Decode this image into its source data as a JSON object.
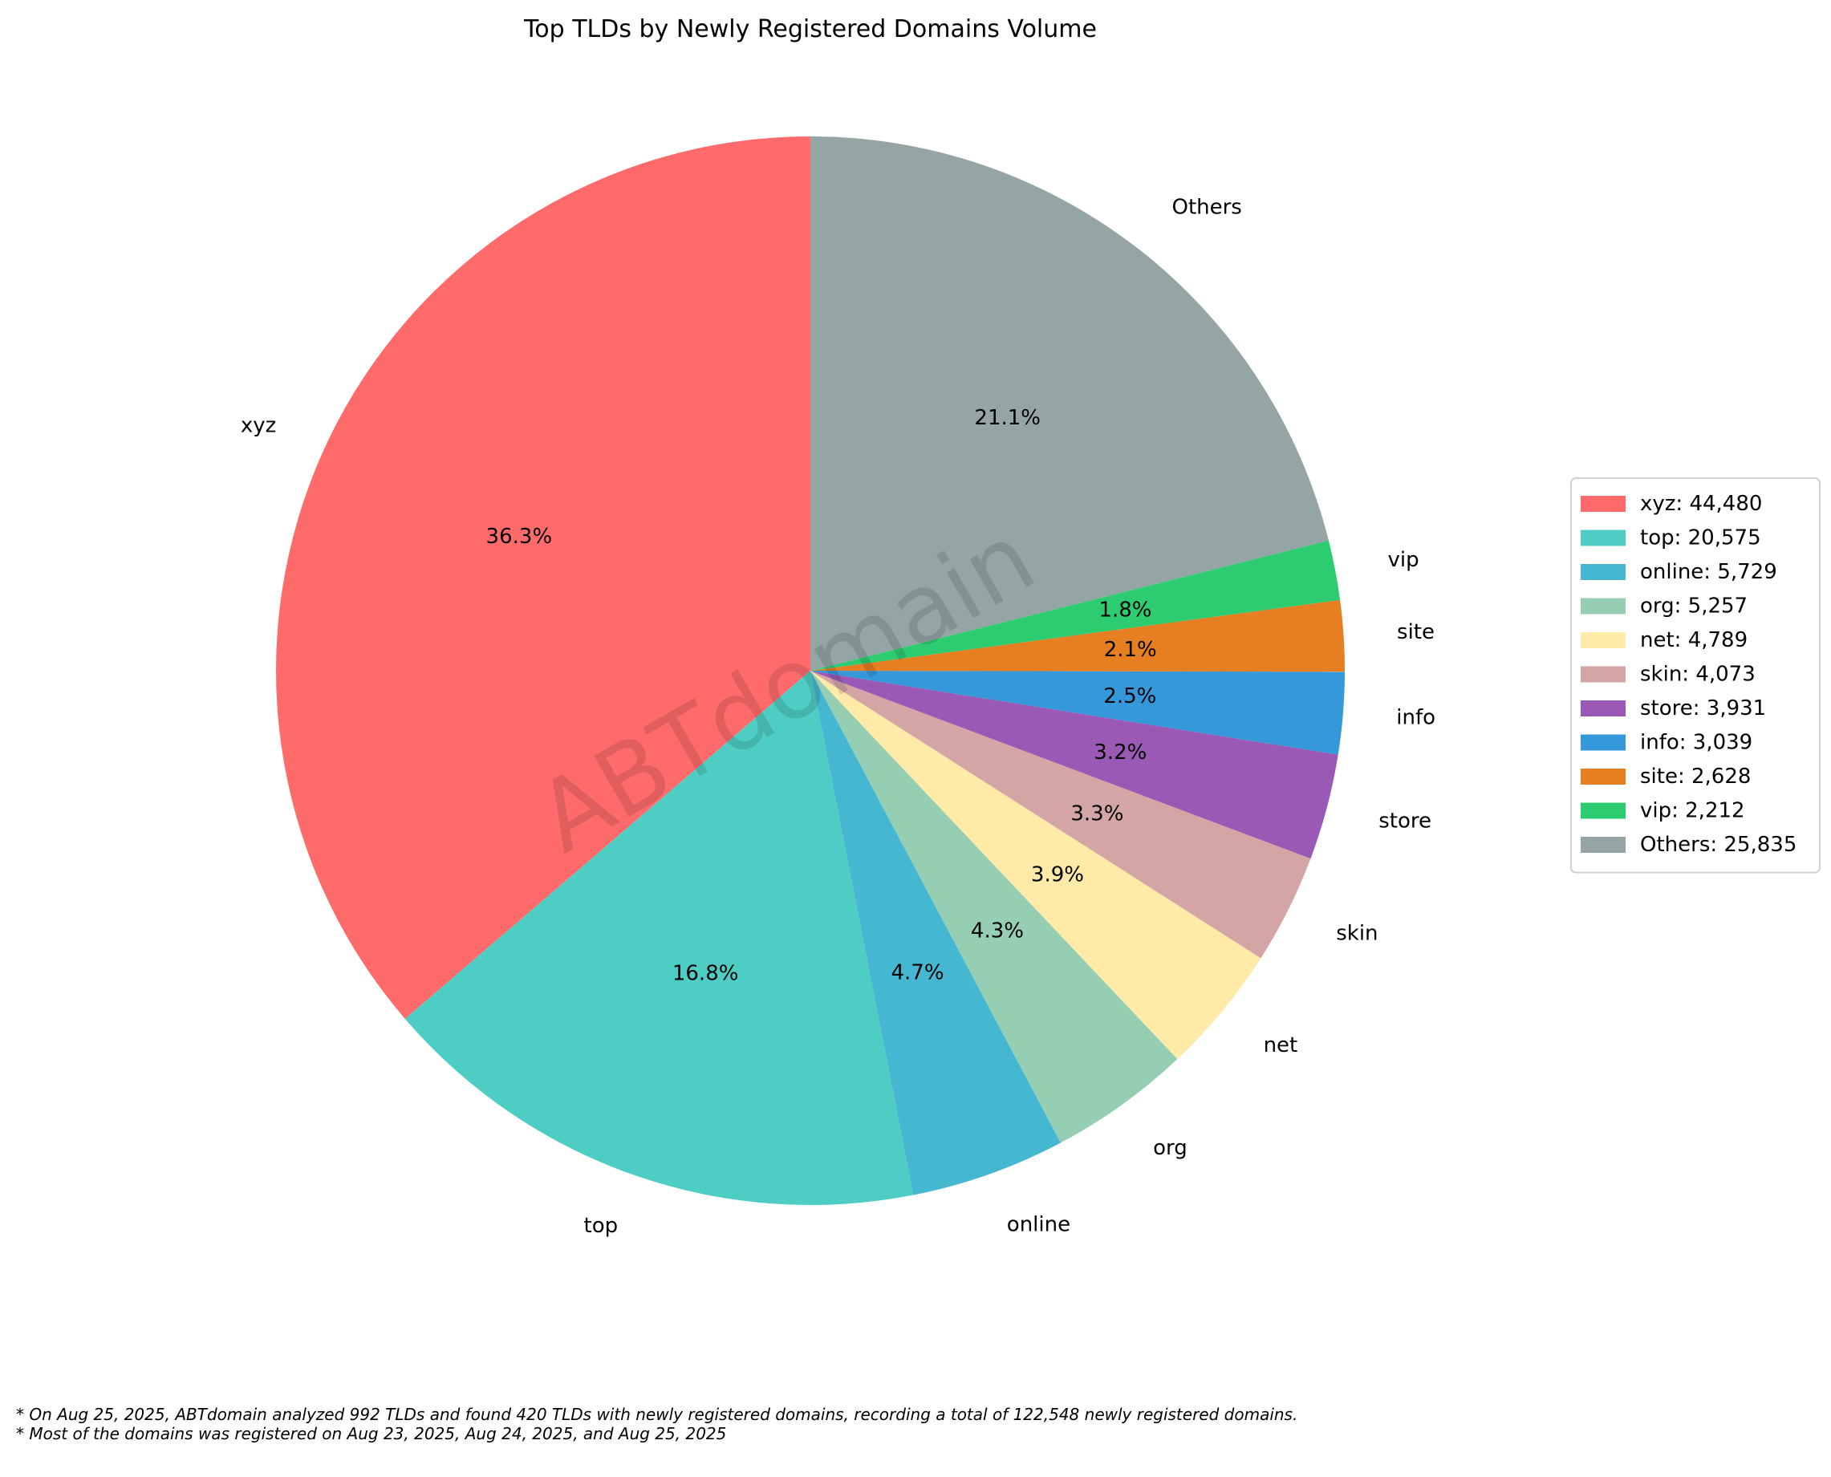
{
  "chart_data": {
    "type": "pie",
    "title": "Top TLDs by Newly Registered Domains Volume",
    "categories": [
      "xyz",
      "top",
      "online",
      "org",
      "net",
      "skin",
      "store",
      "info",
      "site",
      "vip",
      "Others"
    ],
    "values": [
      44480,
      20575,
      5729,
      5257,
      4789,
      4073,
      3931,
      3039,
      2628,
      2212,
      25835
    ],
    "percent_labels": [
      "36.3%",
      "16.8%",
      "4.7%",
      "4.3%",
      "3.9%",
      "3.3%",
      "3.2%",
      "2.5%",
      "2.1%",
      "1.8%",
      "21.1%"
    ],
    "legend_entries": [
      "xyz: 44,480",
      "top: 20,575",
      "online: 5,729",
      "org: 5,257",
      "net: 4,789",
      "skin: 4,073",
      "store: 3,931",
      "info: 3,039",
      "site: 2,628",
      "vip: 2,212",
      "Others: 25,835"
    ],
    "colors": [
      "#ff6b6b",
      "#4ecdc4",
      "#45b7d1",
      "#96ceb4",
      "#ffeaa7",
      "#d4a5a5",
      "#9b59b6",
      "#3498db",
      "#e67e22",
      "#2ecc71",
      "#95a5a6"
    ],
    "legend_placement": "right",
    "start_angle_deg": 90,
    "direction": "counterclockwise",
    "watermark": "ABTdomain"
  },
  "footnotes": [
    "* On Aug 25, 2025, ABTdomain analyzed 992 TLDs and found 420 TLDs with newly registered domains, recording a total of 122,548 newly registered domains.",
    "* Most of the domains was registered on Aug 23, 2025, Aug 24, 2025, and Aug 25, 2025"
  ]
}
